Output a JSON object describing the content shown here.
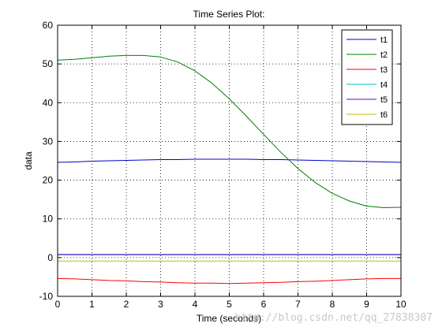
{
  "chart_data": {
    "type": "line",
    "title": "Time Series Plot:",
    "xlabel": "Time (seconds)",
    "ylabel": "data",
    "xlim": [
      0,
      10
    ],
    "ylim": [
      -10,
      60
    ],
    "xticks": [
      0,
      1,
      2,
      3,
      4,
      5,
      6,
      7,
      8,
      9,
      10
    ],
    "yticks": [
      -10,
      0,
      10,
      20,
      30,
      40,
      50,
      60
    ],
    "grid": true,
    "grid_style": "dotted",
    "legend_position": "top-right",
    "x": [
      0,
      0.5,
      1,
      1.5,
      2,
      2.5,
      3,
      3.5,
      4,
      4.5,
      5,
      5.5,
      6,
      6.5,
      7,
      7.5,
      8,
      8.5,
      9,
      9.5,
      10
    ],
    "series": [
      {
        "name": "t1",
        "color": "#0000cc",
        "values": [
          24.6,
          24.7,
          24.9,
          25.0,
          25.1,
          25.2,
          25.3,
          25.3,
          25.4,
          25.4,
          25.4,
          25.4,
          25.3,
          25.3,
          25.2,
          25.1,
          25.0,
          24.9,
          24.8,
          24.7,
          24.6
        ]
      },
      {
        "name": "t2",
        "color": "#008000",
        "values": [
          51.0,
          51.2,
          51.6,
          52.0,
          52.2,
          52.2,
          51.8,
          50.5,
          48.2,
          45.0,
          41.0,
          36.5,
          31.8,
          27.2,
          23.0,
          19.4,
          16.6,
          14.6,
          13.3,
          12.9,
          13.0
        ]
      },
      {
        "name": "t3",
        "color": "#ff0000",
        "values": [
          -5.4,
          -5.5,
          -5.7,
          -5.9,
          -6.0,
          -6.2,
          -6.3,
          -6.5,
          -6.6,
          -6.6,
          -6.7,
          -6.6,
          -6.5,
          -6.4,
          -6.2,
          -6.1,
          -5.9,
          -5.7,
          -5.5,
          -5.4,
          -5.4
        ]
      },
      {
        "name": "t4",
        "color": "#00bfbf",
        "values": [
          0.7,
          0.7,
          0.7,
          0.7,
          0.7,
          0.7,
          0.7,
          0.7,
          0.7,
          0.7,
          0.7,
          0.7,
          0.7,
          0.7,
          0.7,
          0.7,
          0.7,
          0.7,
          0.7,
          0.7,
          0.7
        ]
      },
      {
        "name": "t5",
        "color": "#6a00cc",
        "values": [
          0.8,
          0.8,
          0.8,
          0.8,
          0.8,
          0.8,
          0.8,
          0.8,
          0.8,
          0.8,
          0.8,
          0.8,
          0.8,
          0.8,
          0.8,
          0.8,
          0.8,
          0.8,
          0.8,
          0.8,
          0.8
        ]
      },
      {
        "name": "t6",
        "color": "#bfbf00",
        "values": [
          -0.9,
          -0.9,
          -0.9,
          -0.9,
          -0.9,
          -0.9,
          -0.9,
          -0.9,
          -0.9,
          -0.9,
          -0.9,
          -0.9,
          -0.9,
          -0.9,
          -0.9,
          -0.9,
          -0.9,
          -0.9,
          -0.9,
          -0.9,
          -0.9
        ]
      }
    ]
  },
  "watermark": "http://blog.csdn.net/qq_27838307"
}
